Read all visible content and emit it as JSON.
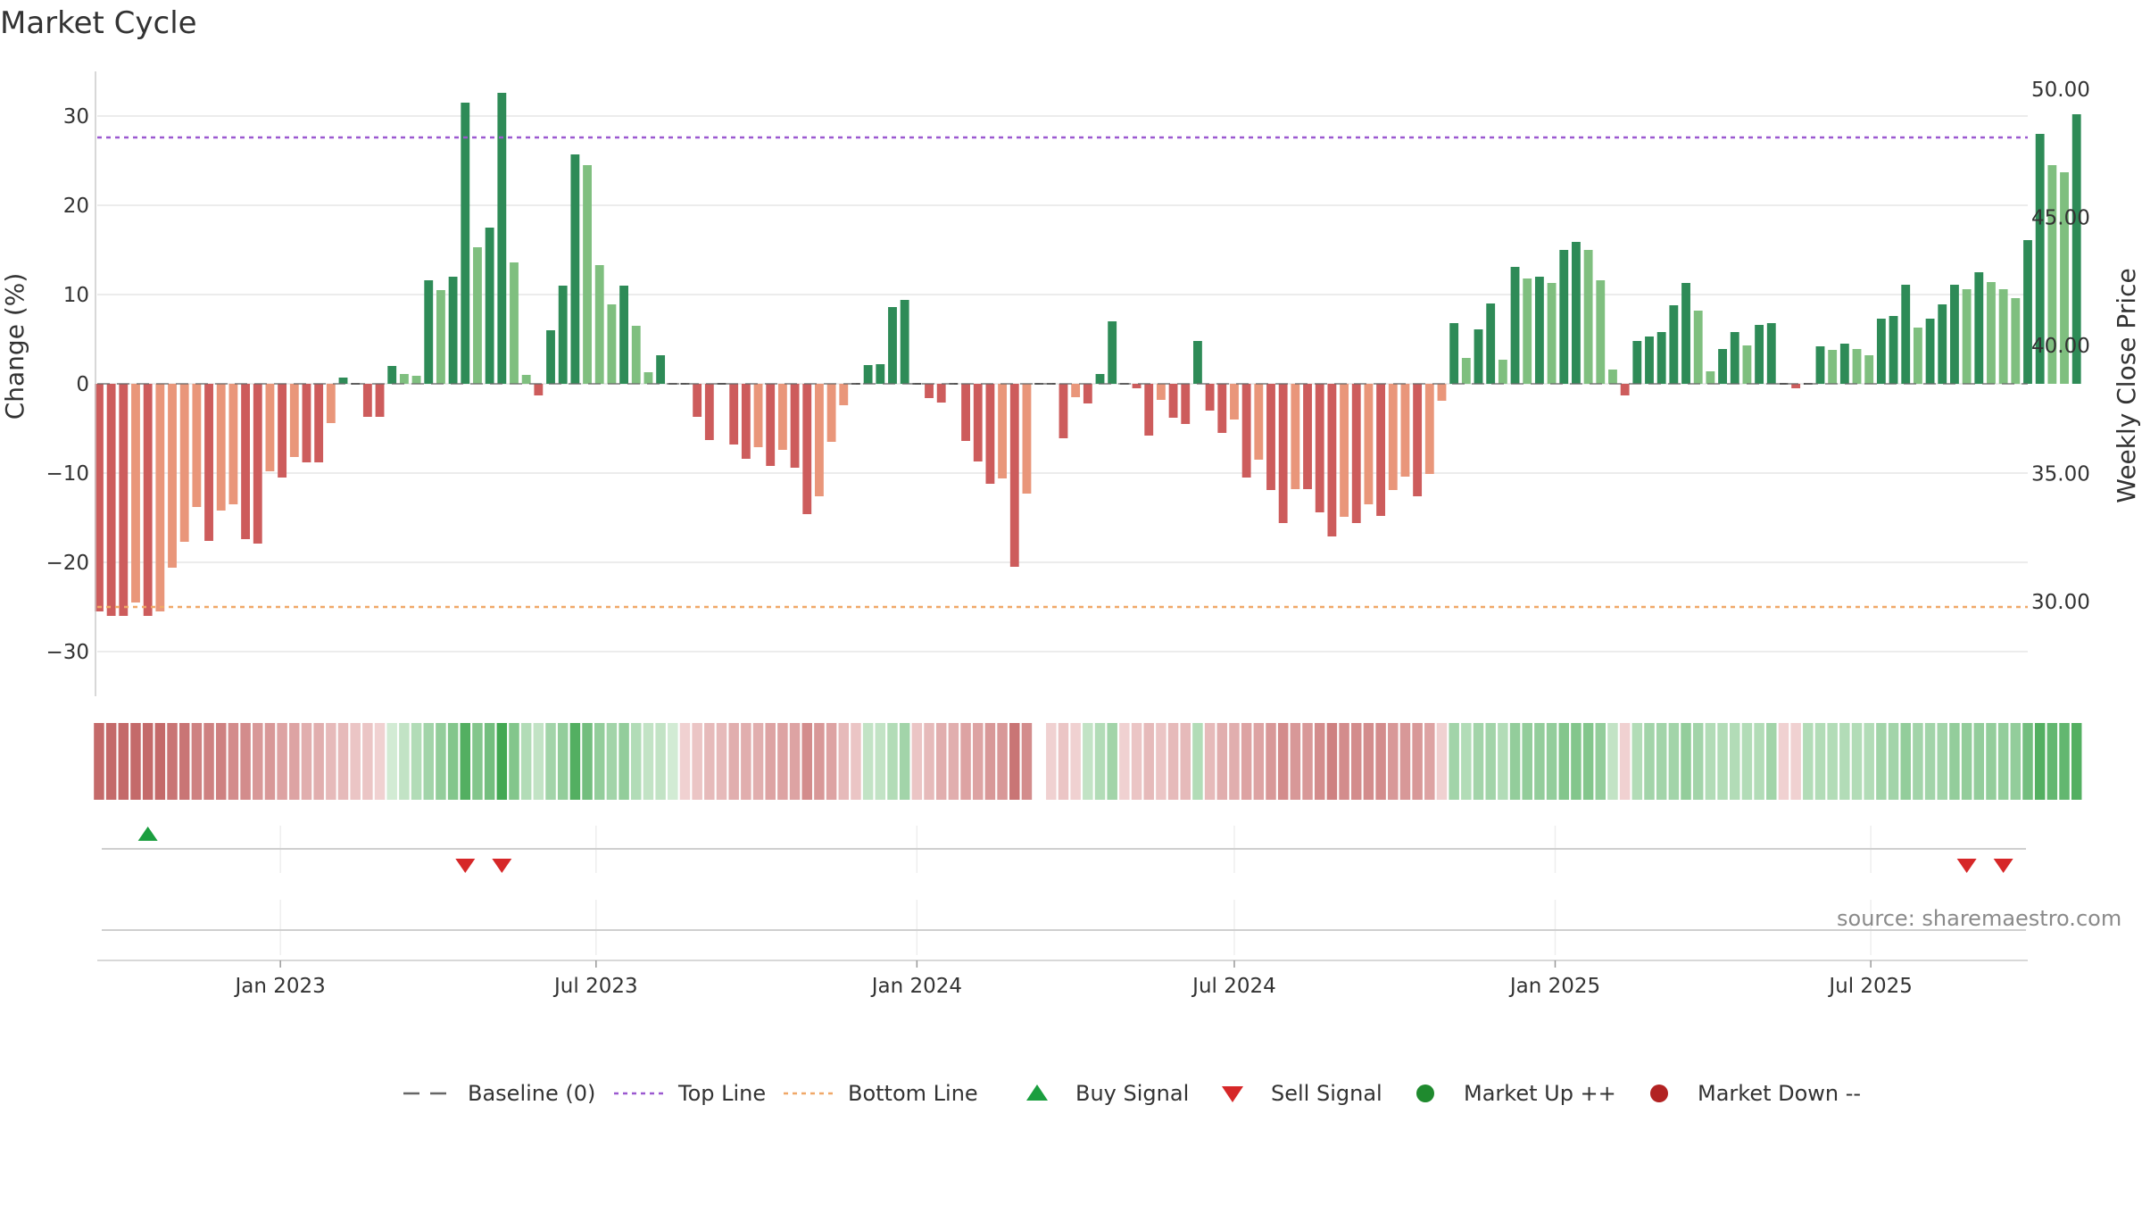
{
  "chart_data": {
    "type": "bar",
    "title": "Market Cycle",
    "ylabel": "Change (%)",
    "y2label": "Weekly Close Price",
    "ylim": [
      -35,
      35
    ],
    "y2lim": [
      26.3,
      50.7
    ],
    "yticks": [
      30,
      20,
      10,
      0,
      -10,
      -20,
      -30
    ],
    "y2ticks": [
      "50.00",
      "45.00",
      "40.00",
      "35.00",
      "30.00"
    ],
    "x_range": [
      "2022-09-18",
      "2025-09-29"
    ],
    "x_ticks": [
      {
        "label": "Jan 2023",
        "date": "2023-01-01"
      },
      {
        "label": "Jul 2023",
        "date": "2023-07-01"
      },
      {
        "label": "Jan 2024",
        "date": "2024-01-01"
      },
      {
        "label": "Jul 2024",
        "date": "2024-07-01"
      },
      {
        "label": "Jan 2025",
        "date": "2025-01-01"
      },
      {
        "label": "Jul 2025",
        "date": "2025-07-01"
      }
    ],
    "start_week": "2022-09-19",
    "top_line": 27.6,
    "bottom_line": -25,
    "baseline": 0,
    "grid": true,
    "legend_position": "bottom-center",
    "series": [
      {
        "name": "Change",
        "values": [
          -25.5,
          -26,
          -26,
          -24.5,
          -26,
          -25.5,
          -20.6,
          -17.7,
          -13.8,
          -17.6,
          -14.2,
          -13.5,
          -17.4,
          -17.9,
          -9.8,
          -10.5,
          -8.2,
          -8.8,
          -8.8,
          -4.4,
          0.7,
          0,
          -3.7,
          -3.7,
          2,
          1.1,
          0.9,
          11.6,
          10.5,
          12,
          31.5,
          15.3,
          17.5,
          32.6,
          13.6,
          1,
          -1.3,
          6,
          11,
          25.7,
          24.5,
          13.3,
          8.9,
          11,
          6.5,
          1.3,
          3.2,
          0,
          0,
          -3.7,
          -6.3,
          0,
          -6.8,
          -8.4,
          -7.1,
          -9.2,
          -7.4,
          -9.4,
          -14.6,
          -12.6,
          -6.5,
          -2.4,
          0,
          2.1,
          2.2,
          8.6,
          9.4,
          0,
          -1.6,
          -2.1,
          0,
          -6.4,
          -8.7,
          -11.2,
          -10.6,
          -20.5,
          -12.3,
          0,
          0,
          -6.1,
          -1.5,
          -2.2,
          1.1,
          7,
          0,
          -0.5,
          -5.8,
          -1.8,
          -3.8,
          -4.5,
          4.8,
          -3,
          -5.5,
          -4,
          -10.5,
          -8.5,
          -11.9,
          -15.6,
          -11.8,
          -11.8,
          -14.4,
          -17.1,
          -14.9,
          -15.6,
          -13.5,
          -14.8,
          -11.9,
          -10.4,
          -12.6,
          -10.1,
          -1.9,
          6.8,
          2.9,
          6.1,
          9,
          2.7,
          13.1,
          11.8,
          12,
          11.3,
          15,
          15.9,
          15,
          11.6,
          1.6,
          -1.3,
          4.8,
          5.3,
          5.8,
          8.8,
          11.3,
          8.2,
          1.4,
          3.9,
          5.8,
          4.3,
          6.6,
          6.8,
          0,
          -0.5,
          0,
          4.2,
          3.8,
          4.5,
          3.9,
          3.2,
          7.3,
          7.6,
          11.1,
          6.3,
          7.3,
          8.9,
          11.1,
          10.6,
          12.5,
          11.4,
          10.6,
          9.6,
          16.1,
          28,
          24.5,
          23.7,
          30.2
        ]
      }
    ],
    "pulse_levels": [
      -1,
      -1,
      -1,
      -1,
      -1,
      -1,
      -0.9,
      -0.9,
      -0.8,
      -0.8,
      -0.8,
      -0.7,
      -0.7,
      -0.6,
      -0.6,
      -0.5,
      -0.5,
      -0.4,
      -0.4,
      -0.3,
      -0.3,
      -0.2,
      -0.2,
      -0.1,
      0.1,
      0.2,
      0.3,
      0.4,
      0.5,
      0.6,
      0.9,
      0.6,
      0.7,
      1,
      0.6,
      0.3,
      0.2,
      0.4,
      0.5,
      0.9,
      0.7,
      0.5,
      0.4,
      0.5,
      0.3,
      0.2,
      0.2,
      0.1,
      -0.1,
      -0.2,
      -0.3,
      -0.3,
      -0.4,
      -0.4,
      -0.4,
      -0.5,
      -0.5,
      -0.5,
      -0.7,
      -0.6,
      -0.5,
      -0.3,
      -0.2,
      0.2,
      0.2,
      0.3,
      0.4,
      -0.2,
      -0.3,
      -0.4,
      -0.4,
      -0.5,
      -0.5,
      -0.6,
      -0.6,
      -0.9,
      -0.7,
      null,
      -0.1,
      -0.2,
      -0.1,
      0.2,
      0.3,
      0.4,
      -0.1,
      -0.2,
      -0.3,
      -0.2,
      -0.3,
      -0.3,
      0.3,
      -0.3,
      -0.4,
      -0.4,
      -0.5,
      -0.5,
      -0.6,
      -0.7,
      -0.6,
      -0.6,
      -0.7,
      -0.8,
      -0.7,
      -0.7,
      -0.7,
      -0.7,
      -0.6,
      -0.6,
      -0.6,
      -0.5,
      -0.1,
      0.4,
      0.3,
      0.4,
      0.4,
      0.3,
      0.5,
      0.5,
      0.5,
      0.5,
      0.6,
      0.6,
      0.6,
      0.5,
      0.2,
      -0.1,
      0.3,
      0.4,
      0.4,
      0.4,
      0.5,
      0.4,
      0.3,
      0.3,
      0.3,
      0.3,
      0.3,
      0.4,
      -0.1,
      -0.1,
      0.3,
      0.3,
      0.3,
      0.3,
      0.3,
      0.3,
      0.4,
      0.4,
      0.5,
      0.4,
      0.4,
      0.4,
      0.5,
      0.5,
      0.5,
      0.5,
      0.5,
      0.5,
      0.7,
      0.9,
      0.8,
      0.8,
      0.9
    ],
    "buy_signals": [
      "2022-10-17"
    ],
    "sell_signals": [
      "2023-04-17",
      "2023-05-08",
      "2025-08-25",
      "2025-09-15"
    ],
    "legend": [
      {
        "label": "Baseline (0)",
        "kind": "dash-line",
        "color": "#666666"
      },
      {
        "label": "Top Line",
        "kind": "dot-line",
        "color": "#9b59d0"
      },
      {
        "label": "Bottom Line",
        "kind": "dot-line",
        "color": "#f0a868"
      },
      {
        "label": "Buy Signal",
        "kind": "triangle-up",
        "color": "#1a9e3f"
      },
      {
        "label": "Sell Signal",
        "kind": "triangle-down",
        "color": "#d62728"
      },
      {
        "label": "Market Up ++",
        "kind": "circle",
        "color": "#1f8a2e"
      },
      {
        "label": "Market Down --",
        "kind": "circle",
        "color": "#b22222"
      }
    ],
    "colors": {
      "up_strong": "#2e8b57",
      "up_light": "#7fbf7f",
      "down_strong": "#cd5c5c",
      "down_light": "#e9967a",
      "top_line": "#9b59d0",
      "bottom_line": "#f0a868",
      "baseline": "#666666",
      "grid": "#e6e6e6"
    }
  },
  "source": "source: sharemaestro.com"
}
